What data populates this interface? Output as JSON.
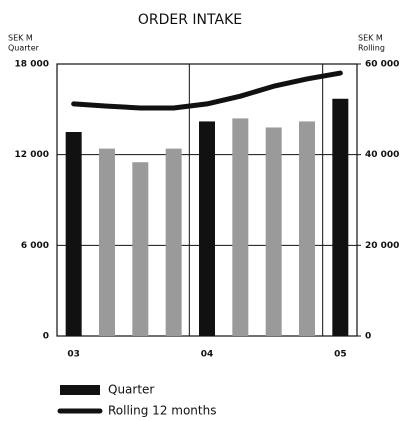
{
  "chart_data": {
    "type": "bar",
    "title": "ORDER INTAKE",
    "y_label": [
      "SEK M",
      "Quarter"
    ],
    "y2_label": [
      "SEK M",
      "Rolling"
    ],
    "categories": [
      "03",
      null,
      null,
      null,
      "04",
      null,
      null,
      null,
      "05"
    ],
    "series": [
      {
        "name": "Quarter",
        "type": "bar",
        "colors": [
          "#111111",
          "#9a9a9a",
          "#9a9a9a",
          "#9a9a9a",
          "#111111",
          "#9a9a9a",
          "#9a9a9a",
          "#9a9a9a",
          "#111111"
        ],
        "values": [
          13500,
          12400,
          11500,
          12400,
          14200,
          14400,
          13800,
          14200,
          15700
        ]
      },
      {
        "name": "Rolling 12 months",
        "type": "line",
        "color": "#111111",
        "axis": "y2",
        "values": [
          51200,
          50700,
          50300,
          50300,
          51200,
          52900,
          55100,
          56700,
          58000
        ]
      }
    ],
    "ylim": [
      0,
      18000
    ],
    "yticks": [
      0,
      {
        "value": 6000,
        "label": "6 000"
      },
      {
        "value": 12000,
        "label": "12 000"
      },
      {
        "value": 18000,
        "label": "18 000"
      }
    ],
    "y2lim": [
      0,
      60000
    ],
    "y2ticks": [
      0,
      {
        "value": 20000,
        "label": "20 000"
      },
      {
        "value": 40000,
        "label": "40 000"
      },
      {
        "value": 60000,
        "label": "60 000"
      }
    ],
    "grid": true
  }
}
